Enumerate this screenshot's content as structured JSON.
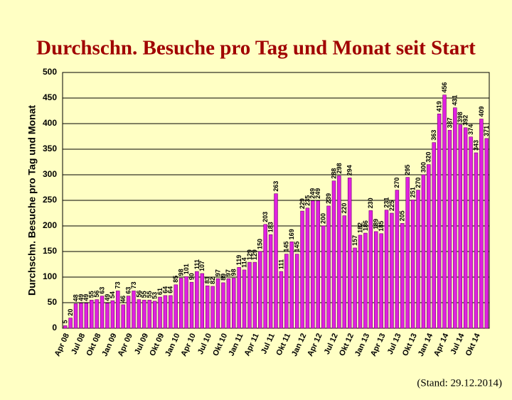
{
  "chart_data": {
    "type": "bar",
    "title": "Durchschn. Besuche pro Tag und Monat seit Start",
    "y_label": "Durchschn. Besuche pro Tag und Monat",
    "note": "(Stand: 29.12.2014)",
    "color": "#e020e0",
    "grid": true,
    "ylim": [
      0,
      500
    ],
    "yticks": [
      0,
      50,
      100,
      150,
      200,
      250,
      300,
      350,
      400,
      450,
      500
    ],
    "categories": [
      "Apr 08",
      null,
      null,
      "Jul 08",
      null,
      null,
      "Okt 08",
      null,
      null,
      "Jan 09",
      null,
      null,
      "Apr 09",
      null,
      null,
      "Jul 09",
      null,
      null,
      "Okt 09",
      null,
      null,
      "Jan 10",
      null,
      null,
      "Apr 10",
      null,
      null,
      "Jul 10",
      null,
      null,
      "Okt 10",
      null,
      null,
      "Jan 11",
      null,
      null,
      "Apr 11",
      null,
      null,
      "Jul 11",
      null,
      null,
      "Okt 11",
      null,
      null,
      "Jan 12",
      null,
      null,
      "Apr 12",
      null,
      null,
      "Jul 12",
      null,
      null,
      "Okt 12",
      null,
      null,
      "Jan 13",
      null,
      null,
      "Apr 13",
      null,
      null,
      "Jul 13",
      null,
      null,
      "Okt 13",
      null,
      null,
      "Jan 14",
      null,
      null,
      "Apr 14",
      null,
      null,
      "Jul 14",
      null,
      null,
      "Okt 14",
      null,
      null
    ],
    "values": [
      5,
      20,
      48,
      49,
      49,
      55,
      56,
      63,
      49,
      54,
      73,
      46,
      63,
      73,
      56,
      55,
      55,
      53,
      61,
      64,
      64,
      85,
      98,
      101,
      90,
      111,
      107,
      83,
      82,
      97,
      89,
      97,
      98,
      119,
      114,
      129,
      129,
      150,
      203,
      183,
      263,
      111,
      145,
      169,
      145,
      229,
      235,
      249,
      249,
      200,
      239,
      288,
      298,
      220,
      294,
      157,
      182,
      186,
      230,
      189,
      185,
      231,
      225,
      270,
      205,
      295,
      251,
      270,
      300,
      320,
      363,
      419,
      456,
      387,
      431,
      398,
      392,
      374,
      343,
      409,
      371
    ]
  }
}
